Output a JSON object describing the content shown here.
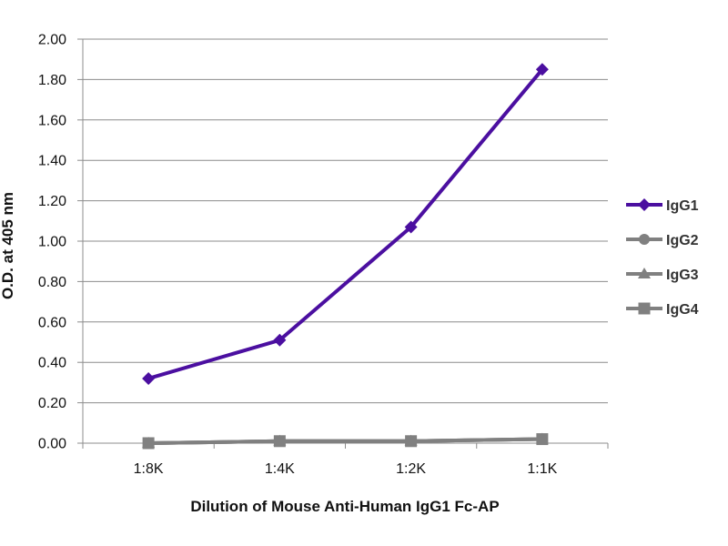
{
  "chart_data": {
    "type": "line",
    "title": "",
    "xlabel": "Dilution of Mouse Anti-Human IgG1 Fc-AP",
    "ylabel": "O.D. at 405 nm",
    "categories": [
      "1:8K",
      "1:4K",
      "1:2K",
      "1:1K"
    ],
    "ylim": [
      0,
      2
    ],
    "yticks": [
      "0.00",
      "0.20",
      "0.40",
      "0.60",
      "0.80",
      "1.00",
      "1.20",
      "1.40",
      "1.60",
      "1.80",
      "2.00"
    ],
    "grid": true,
    "legend_position": "right",
    "series": [
      {
        "name": "IgG1",
        "values": [
          0.32,
          0.51,
          1.07,
          1.85
        ],
        "color": "#4b0fa0",
        "marker": "diamond"
      },
      {
        "name": "IgG2",
        "values": [
          0.0,
          0.01,
          0.01,
          0.02
        ],
        "color": "#808080",
        "marker": "circle"
      },
      {
        "name": "IgG3",
        "values": [
          0.0,
          0.01,
          0.01,
          0.02
        ],
        "color": "#808080",
        "marker": "triangle"
      },
      {
        "name": "IgG4",
        "values": [
          0.0,
          0.01,
          0.01,
          0.02
        ],
        "color": "#808080",
        "marker": "square"
      }
    ]
  }
}
